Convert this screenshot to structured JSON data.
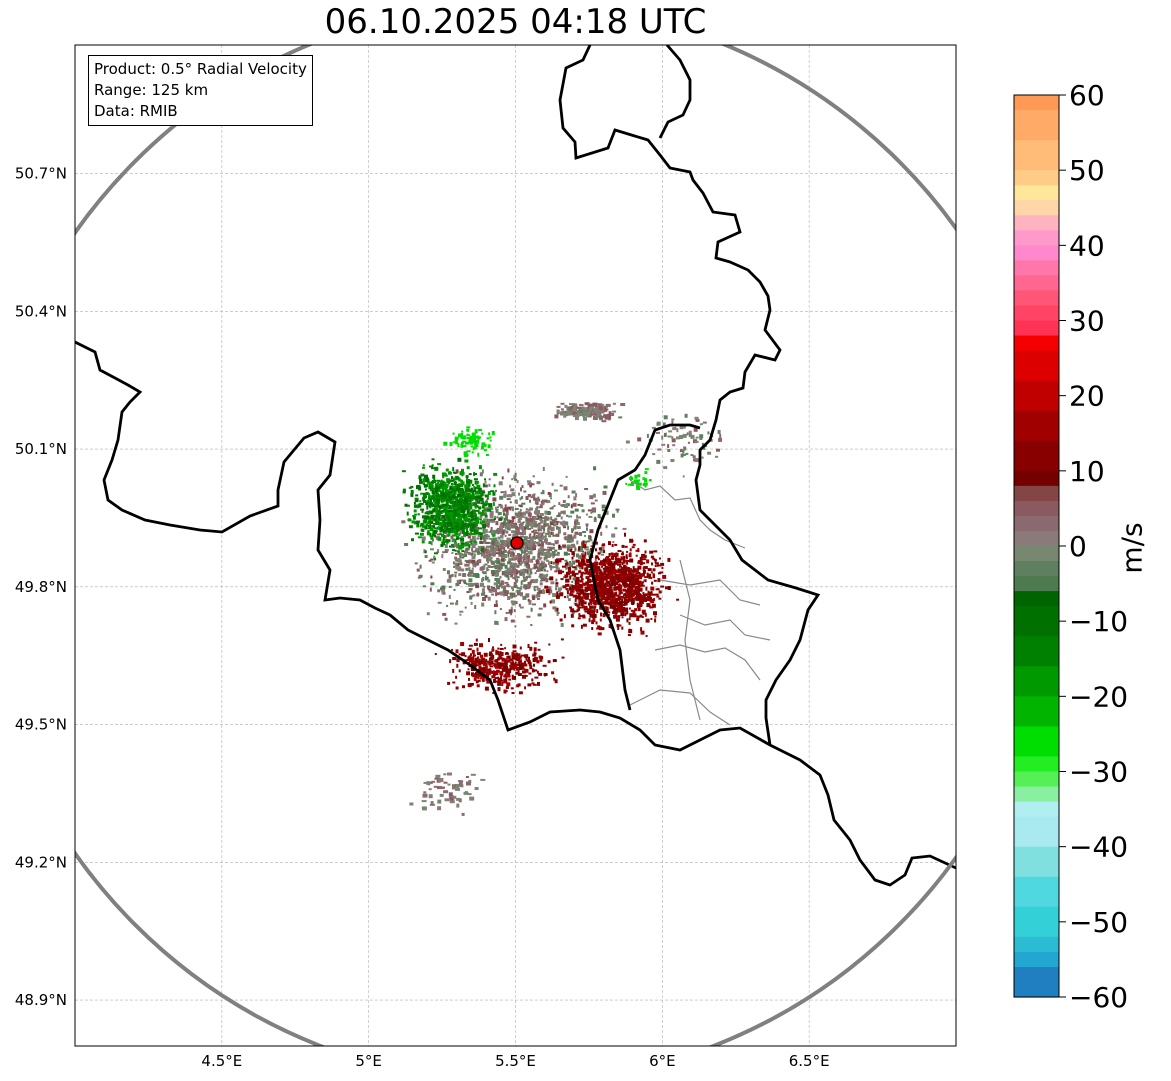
{
  "title": "06.10.2025 04:18 UTC",
  "info": {
    "product": "Product: 0.5° Radial Velocity",
    "range": "Range: 125 km",
    "source": "Data: RMIB"
  },
  "map": {
    "extent": {
      "lon_min": 4.0,
      "lon_max": 7.0,
      "lat_min": 48.8,
      "lat_max": 50.98
    },
    "lon_ticks": [
      {
        "value": 4.5,
        "label": "4.5°E"
      },
      {
        "value": 5.0,
        "label": "5°E"
      },
      {
        "value": 5.5,
        "label": "5.5°E"
      },
      {
        "value": 6.0,
        "label": "6°E"
      },
      {
        "value": 6.5,
        "label": "6.5°E"
      }
    ],
    "lat_ticks": [
      {
        "value": 50.7,
        "label": "50.7°N"
      },
      {
        "value": 50.4,
        "label": "50.4°N"
      },
      {
        "value": 50.1,
        "label": "50.1°N"
      },
      {
        "value": 49.8,
        "label": "49.8°N"
      },
      {
        "value": 49.5,
        "label": "49.5°N"
      },
      {
        "value": 49.2,
        "label": "49.2°N"
      },
      {
        "value": 48.9,
        "label": "48.9°N"
      }
    ],
    "radar_site": {
      "lon": 5.505,
      "lat": 49.914
    },
    "range_km": 125
  },
  "colorbar": {
    "unit": "m/s",
    "min": -60,
    "max": 60,
    "ticks": [
      {
        "value": 60,
        "label": "60"
      },
      {
        "value": 50,
        "label": "50"
      },
      {
        "value": 40,
        "label": "40"
      },
      {
        "value": 30,
        "label": "30"
      },
      {
        "value": 20,
        "label": "20"
      },
      {
        "value": 10,
        "label": "10"
      },
      {
        "value": 0,
        "label": "0"
      },
      {
        "value": -10,
        "label": "−10"
      },
      {
        "value": -20,
        "label": "−20"
      },
      {
        "value": -30,
        "label": "−30"
      },
      {
        "value": -40,
        "label": "−40"
      },
      {
        "value": -50,
        "label": "−50"
      },
      {
        "value": -60,
        "label": "−60"
      }
    ],
    "stops": [
      {
        "from": 58,
        "to": 60,
        "color": "#ff9955"
      },
      {
        "from": 54,
        "to": 58,
        "color": "#ffaa66"
      },
      {
        "from": 50,
        "to": 54,
        "color": "#ffbb77"
      },
      {
        "from": 48,
        "to": 50,
        "color": "#ffcc88"
      },
      {
        "from": 46,
        "to": 48,
        "color": "#ffe699"
      },
      {
        "from": 44,
        "to": 46,
        "color": "#ffd6aa"
      },
      {
        "from": 42,
        "to": 44,
        "color": "#ffb3c0"
      },
      {
        "from": 40,
        "to": 42,
        "color": "#ff99cc"
      },
      {
        "from": 38,
        "to": 40,
        "color": "#ff88cc"
      },
      {
        "from": 36,
        "to": 38,
        "color": "#ff77aa"
      },
      {
        "from": 34,
        "to": 36,
        "color": "#ff6690"
      },
      {
        "from": 32,
        "to": 34,
        "color": "#ff5577"
      },
      {
        "from": 30,
        "to": 32,
        "color": "#ff4466"
      },
      {
        "from": 28,
        "to": 30,
        "color": "#ff3355"
      },
      {
        "from": 26,
        "to": 28,
        "color": "#f40000"
      },
      {
        "from": 22,
        "to": 26,
        "color": "#dd0000"
      },
      {
        "from": 18,
        "to": 22,
        "color": "#c00000"
      },
      {
        "from": 14,
        "to": 18,
        "color": "#a00000"
      },
      {
        "from": 10,
        "to": 14,
        "color": "#880000"
      },
      {
        "from": 8,
        "to": 10,
        "color": "#740000"
      },
      {
        "from": 6,
        "to": 8,
        "color": "#834545"
      },
      {
        "from": 4,
        "to": 6,
        "color": "#8a5a60"
      },
      {
        "from": 2,
        "to": 4,
        "color": "#8a6a70"
      },
      {
        "from": 0,
        "to": 2,
        "color": "#8a7a7a"
      },
      {
        "from": -2,
        "to": 0,
        "color": "#788870"
      },
      {
        "from": -4,
        "to": -2,
        "color": "#5e8060"
      },
      {
        "from": -6,
        "to": -4,
        "color": "#4e7a50"
      },
      {
        "from": -8,
        "to": -6,
        "color": "#006400"
      },
      {
        "from": -12,
        "to": -8,
        "color": "#007000"
      },
      {
        "from": -16,
        "to": -12,
        "color": "#008000"
      },
      {
        "from": -20,
        "to": -16,
        "color": "#009900"
      },
      {
        "from": -24,
        "to": -20,
        "color": "#00b400"
      },
      {
        "from": -28,
        "to": -24,
        "color": "#00dd00"
      },
      {
        "from": -30,
        "to": -28,
        "color": "#22ee22"
      },
      {
        "from": -32,
        "to": -30,
        "color": "#55f055"
      },
      {
        "from": -34,
        "to": -32,
        "color": "#88f0a0"
      },
      {
        "from": -36,
        "to": -34,
        "color": "#b0eef0"
      },
      {
        "from": -40,
        "to": -36,
        "color": "#a8eaf0"
      },
      {
        "from": -44,
        "to": -40,
        "color": "#80e0e0"
      },
      {
        "from": -48,
        "to": -44,
        "color": "#50d8e0"
      },
      {
        "from": -52,
        "to": -48,
        "color": "#33d0d8"
      },
      {
        "from": -54,
        "to": -52,
        "color": "#2bbcd4"
      },
      {
        "from": -56,
        "to": -54,
        "color": "#22a8d0"
      },
      {
        "from": -60,
        "to": -56,
        "color": "#1f7fc0"
      }
    ]
  }
}
